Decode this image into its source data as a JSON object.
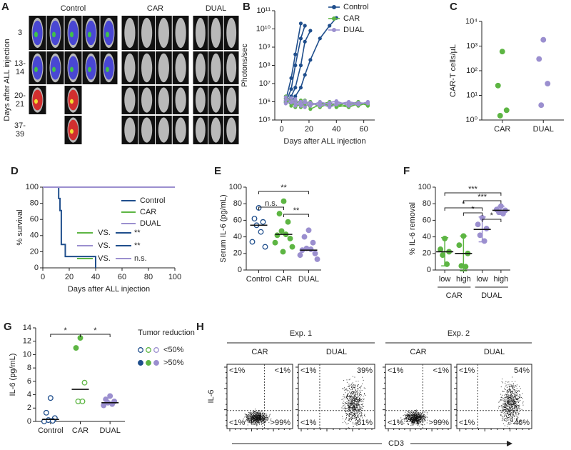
{
  "panel_a": {
    "label": "A",
    "groups": [
      "Control",
      "CAR",
      "DUAL"
    ],
    "rows": [
      [
        "3"
      ],
      [
        "13-",
        "14"
      ],
      [
        "20-",
        "21"
      ],
      [
        "37-",
        "39"
      ]
    ],
    "ylabel": "Days after ALL injection"
  },
  "chart_data": [
    {
      "label": "B",
      "type": "line",
      "xlabel": "Days after ALL injection",
      "ylabel": "Photons/sec",
      "log_y": true,
      "x": [
        3,
        7,
        10,
        14,
        17,
        21,
        28,
        35,
        40,
        49,
        56,
        63
      ],
      "xlim": [
        -5,
        68
      ],
      "xticks": [
        0,
        20,
        40,
        60
      ],
      "ylim": [
        100000,
        100000000000
      ],
      "yticks": [
        {
          "value": 100000,
          "label": "10⁵"
        },
        {
          "value": 1000000,
          "label": "10⁶"
        },
        {
          "value": 10000000,
          "label": "10⁷"
        },
        {
          "value": 100000000,
          "label": "10⁸"
        },
        {
          "value": 1000000000,
          "label": "10⁹"
        },
        {
          "value": 10000000000,
          "label": "10¹⁰"
        },
        {
          "value": 100000000000,
          "label": "10¹¹"
        }
      ],
      "series": [
        {
          "name": "Control",
          "color": "#1f4e8c",
          "lines": [
            [
              1200000.0,
              20000000.0,
              400000000.0,
              20000000000.0,
              null,
              null,
              null,
              null,
              null,
              null,
              null,
              null
            ],
            [
              900000.0,
              5000000.0,
              100000000.0,
              3000000000.0,
              15000000000.0,
              null,
              null,
              null,
              null,
              null,
              null,
              null
            ],
            [
              1000000.0,
              2000000.0,
              6000000.0,
              100000000.0,
              2000000000.0,
              8000000000.0,
              null,
              null,
              null,
              null,
              null,
              null
            ],
            [
              1500000.0,
              1000000.0,
              2000000.0,
              6000000.0,
              30000000.0,
              200000000.0,
              3000000000.0,
              15000000000.0,
              40000000000.0,
              null,
              null,
              null
            ]
          ]
        },
        {
          "name": "CAR",
          "color": "#5db543",
          "lines": [
            [
              2000000.0,
              1000000.0,
              800000.0,
              1200000.0,
              600000.0,
              700000.0,
              900000.0,
              600000.0,
              700000.0,
              500000.0,
              800000.0,
              700000.0
            ],
            [
              1500000.0,
              600000.0,
              1000000.0,
              500000.0,
              800000.0,
              1000000.0,
              500000.0,
              800000.0,
              600000.0,
              900000.0,
              600000.0,
              900000.0
            ],
            [
              1000000.0,
              1300000.0,
              500000.0,
              800000.0,
              1200000.0,
              400000.0,
              700000.0,
              1000000.0,
              500000.0,
              700000.0,
              1000000.0,
              600000.0
            ]
          ]
        },
        {
          "name": "DUAL",
          "color": "#9b8fcf",
          "lines": [
            [
              1800000.0,
              900000.0,
              1400000.0,
              700000.0,
              900000.0,
              600000.0,
              1000000.0,
              700000.0,
              900000.0,
              800000.0,
              700000.0,
              1000000.0
            ],
            [
              1200000.0,
              1600000.0,
              600000.0,
              1000000.0,
              500000.0,
              900000.0,
              600000.0,
              900000.0,
              1100000.0,
              600000.0,
              900000.0,
              800000.0
            ],
            [
              800000.0,
              1000000.0,
              900000.0,
              600000.0,
              1100000.0,
              800000.0,
              800000.0,
              500000.0,
              700000.0,
              1000000.0,
              800000.0,
              900000.0
            ]
          ]
        }
      ]
    },
    {
      "label": "C",
      "type": "strip",
      "ylabel": "CAR-T cells/µL",
      "log_y": true,
      "categories": [
        "CAR",
        "DUAL"
      ],
      "values": [
        [
          600,
          25,
          2.5,
          1.5
        ],
        [
          1800,
          300,
          30,
          4
        ]
      ],
      "colors": [
        "#5db543",
        "#9b8fcf"
      ],
      "ylim": [
        1,
        10000
      ],
      "yticks": [
        {
          "value": 1,
          "label": "10⁰"
        },
        {
          "value": 10,
          "label": "10¹"
        },
        {
          "value": 100,
          "label": "10²"
        },
        {
          "value": 1000,
          "label": "10³"
        },
        {
          "value": 10000,
          "label": "10⁴"
        }
      ]
    },
    {
      "label": "D",
      "type": "step",
      "xlabel": "Days after ALL injection",
      "ylabel": "% survival",
      "xlim": [
        0,
        100
      ],
      "xticks": [
        0,
        20,
        40,
        60,
        80,
        100
      ],
      "ylim": [
        0,
        100
      ],
      "yticks": [
        0,
        20,
        40,
        60,
        80,
        100
      ],
      "series": [
        {
          "name": "Control",
          "color": "#1f4e8c",
          "x": [
            0,
            12,
            13,
            14,
            17,
            40
          ],
          "values": [
            100,
            86,
            71,
            29,
            14,
            0
          ]
        },
        {
          "name": "CAR",
          "color": "#5db543",
          "x": [
            0,
            100
          ],
          "values": [
            100,
            100
          ]
        },
        {
          "name": "DUAL",
          "color": "#9b8fcf",
          "x": [
            0,
            100
          ],
          "values": [
            100,
            100
          ]
        }
      ],
      "comparisons": [
        {
          "a": 1,
          "b": 0,
          "label": "VS.",
          "result": "**"
        },
        {
          "a": 2,
          "b": 0,
          "label": "VS.",
          "result": "**"
        },
        {
          "a": 1,
          "b": 2,
          "label": "VS.",
          "result": "n.s."
        }
      ]
    },
    {
      "label": "E",
      "type": "strip",
      "ylabel": "Serum IL-6 (pg/mL)",
      "categories": [
        "Control",
        "CAR",
        "DUAL"
      ],
      "values": [
        [
          75,
          62,
          58,
          54,
          46,
          34,
          28
        ],
        [
          83,
          68,
          58,
          47,
          43,
          42,
          38,
          33,
          28,
          22
        ],
        [
          48,
          40,
          33,
          26,
          25,
          24,
          20,
          18,
          13
        ]
      ],
      "center": [
        54,
        43,
        24
      ],
      "colors": [
        "#1f4e8c",
        "#5db543",
        "#9b8fcf"
      ],
      "open": [
        true,
        false,
        false
      ],
      "ylim": [
        0,
        100
      ],
      "yticks": [
        0,
        20,
        40,
        60,
        80,
        100
      ],
      "comparisons": [
        {
          "from": 0,
          "to": 2,
          "text": "**"
        },
        {
          "from": 0,
          "to": 1,
          "text": "n.s."
        },
        {
          "from": 1,
          "to": 2,
          "text": "**"
        }
      ]
    },
    {
      "label": "F",
      "type": "strip",
      "ylabel": "% IL-6 removal",
      "categories": [
        "low",
        "high",
        "low",
        "high"
      ],
      "groups": [
        {
          "name": "CAR",
          "from": 0,
          "to": 1
        },
        {
          "name": "DUAL",
          "from": 2,
          "to": 3
        }
      ],
      "values": [
        [
          38,
          25,
          22,
          18,
          7
        ],
        [
          41,
          30,
          20,
          5,
          4
        ],
        [
          63,
          55,
          50,
          42,
          35
        ],
        [
          77,
          73,
          72,
          70,
          68
        ]
      ],
      "center": [
        22,
        20,
        49,
        72
      ],
      "errors": [
        17,
        21,
        15,
        5
      ],
      "colors": [
        "#5db543",
        "#5db543",
        "#9b8fcf",
        "#9b8fcf"
      ],
      "ylim": [
        0,
        100
      ],
      "yticks": [
        0,
        20,
        40,
        60,
        80,
        100
      ],
      "comparisons": [
        {
          "from": 0,
          "to": 3,
          "text": "***"
        },
        {
          "from": 1,
          "to": 3,
          "text": "***"
        },
        {
          "from": 0,
          "to": 2,
          "text": "*"
        },
        {
          "from": 1,
          "to": 2,
          "text": "*"
        },
        {
          "from": 2,
          "to": 3,
          "text": "*"
        }
      ]
    },
    {
      "label": "G",
      "type": "strip",
      "ylabel": "IL-6 (pg/mL)",
      "categories": [
        "Control",
        "CAR",
        "DUAL"
      ],
      "values": [
        [
          3.5,
          1.3,
          0.5,
          0.2,
          0.1,
          0
        ],
        [
          12.5,
          11,
          5.8,
          3,
          3
        ],
        [
          3.8,
          3.3,
          3,
          2.8,
          2.6,
          2.4
        ]
      ],
      "filled": [
        [
          false,
          false,
          false,
          false,
          false,
          false
        ],
        [
          true,
          true,
          false,
          false,
          false
        ],
        [
          true,
          true,
          true,
          true,
          true,
          true
        ]
      ],
      "center": [
        0.3,
        4.8,
        2.8
      ],
      "colors": [
        "#1f4e8c",
        "#5db543",
        "#9b8fcf"
      ],
      "ylim": [
        0,
        14
      ],
      "yticks": [
        0,
        2,
        4,
        6,
        8,
        10,
        12,
        14
      ],
      "comparisons": [
        {
          "from": 0,
          "to": 1,
          "text": "*"
        },
        {
          "from": 1,
          "to": 2,
          "text": "*"
        }
      ],
      "legend_title": "Tumor reduction",
      "legend": [
        "<50%",
        ">50%"
      ]
    }
  ],
  "panel_h": {
    "label": "H",
    "ylabel": "IL-6",
    "xlabel": "CD3",
    "experiments": [
      {
        "title": "Exp. 1",
        "plots": [
          {
            "title": "CAR",
            "quadrants": [
              "<1%",
              "<1%",
              "<1%",
              ">99%"
            ]
          },
          {
            "title": "DUAL",
            "quadrants": [
              "<1%",
              "39%",
              "<1%",
              "61%"
            ]
          }
        ]
      },
      {
        "title": "Exp. 2",
        "plots": [
          {
            "title": "CAR",
            "quadrants": [
              "<1%",
              "<1%",
              "<1%",
              ">99%"
            ]
          },
          {
            "title": "DUAL",
            "quadrants": [
              "<1%",
              "54%",
              "<1%",
              "46%"
            ]
          }
        ]
      }
    ]
  }
}
